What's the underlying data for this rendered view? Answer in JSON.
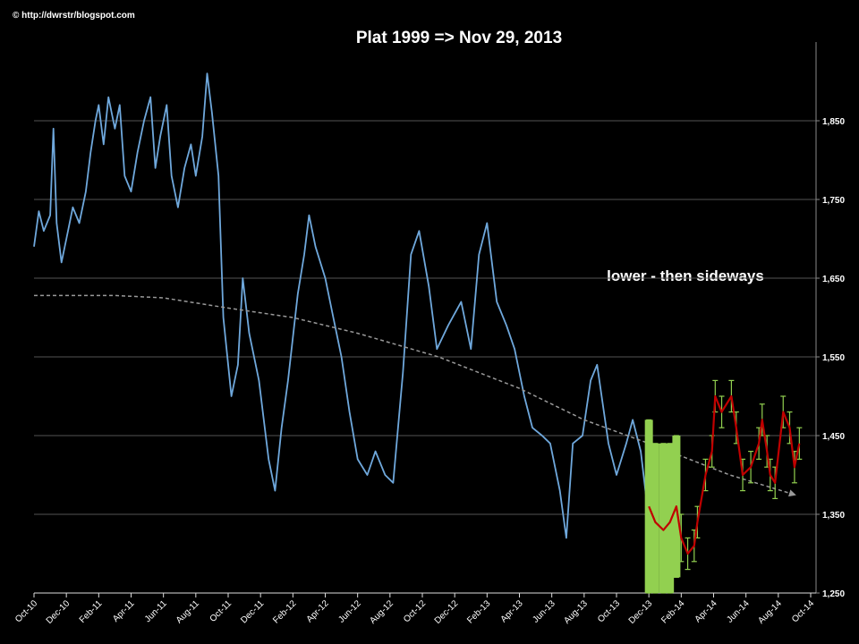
{
  "chart_data": {
    "type": "line",
    "title": "Plat 1999 => Nov 29, 2013",
    "annotation": "lower - then sideways",
    "credit": "© http://dwrstr/blogspot.com",
    "xlim": [
      0,
      48
    ],
    "xticks": [
      {
        "value": 0,
        "label": "Oct-10"
      },
      {
        "value": 2,
        "label": "Dec-10"
      },
      {
        "value": 4,
        "label": "Feb-11"
      },
      {
        "value": 6,
        "label": "Apr-11"
      },
      {
        "value": 8,
        "label": "Jun-11"
      },
      {
        "value": 10,
        "label": "Aug-11"
      },
      {
        "value": 12,
        "label": "Oct-11"
      },
      {
        "value": 14,
        "label": "Dec-11"
      },
      {
        "value": 16,
        "label": "Feb-12"
      },
      {
        "value": 18,
        "label": "Apr-12"
      },
      {
        "value": 20,
        "label": "Jun-12"
      },
      {
        "value": 22,
        "label": "Aug-12"
      },
      {
        "value": 24,
        "label": "Oct-12"
      },
      {
        "value": 26,
        "label": "Dec-12"
      },
      {
        "value": 28,
        "label": "Feb-13"
      },
      {
        "value": 30,
        "label": "Apr-13"
      },
      {
        "value": 32,
        "label": "Jun-13"
      },
      {
        "value": 34,
        "label": "Aug-13"
      },
      {
        "value": 36,
        "label": "Oct-13"
      },
      {
        "value": 38,
        "label": "Dec-13"
      },
      {
        "value": 40,
        "label": "Feb-14"
      },
      {
        "value": 42,
        "label": "Apr-14"
      },
      {
        "value": 44,
        "label": "Jun-14"
      },
      {
        "value": 46,
        "label": "Aug-14"
      },
      {
        "value": 48,
        "label": "Oct-14"
      }
    ],
    "ylim": [
      1250,
      1950
    ],
    "yticks": [
      {
        "value": 1250,
        "label": "1,250"
      },
      {
        "value": 1350,
        "label": "1,350"
      },
      {
        "value": 1450,
        "label": "1,450"
      },
      {
        "value": 1550,
        "label": "1,550"
      },
      {
        "value": 1650,
        "label": "1,650"
      },
      {
        "value": 1750,
        "label": "1,750"
      },
      {
        "value": 1850,
        "label": "1,850"
      }
    ],
    "grid": true,
    "series": [
      {
        "color": "#6fa8dc",
        "style": "solid",
        "x": [
          0,
          0.3,
          0.6,
          1,
          1.2,
          1.4,
          1.7,
          2,
          2.4,
          2.8,
          3.2,
          3.5,
          3.8,
          4,
          4.3,
          4.6,
          5,
          5.3,
          5.6,
          6,
          6.4,
          6.8,
          7.2,
          7.5,
          7.8,
          8.2,
          8.5,
          8.9,
          9.3,
          9.7,
          10,
          10.4,
          10.7,
          11,
          11.4,
          11.7,
          12.2,
          12.6,
          12.9,
          13.3,
          13.9,
          14.5,
          14.9,
          15.3,
          15.7,
          16.3,
          16.7,
          17,
          17.4,
          18,
          18.5,
          19,
          19.5,
          20,
          20.6,
          21.1,
          21.7,
          22.2,
          22.8,
          23.3,
          23.8,
          24.4,
          24.9,
          25.6,
          26.4,
          27,
          27.5,
          28,
          28.6,
          29.2,
          29.7,
          30.3,
          30.8,
          31.4,
          31.9,
          32.5,
          32.9,
          33.3,
          33.9,
          34.4,
          34.8,
          35.5,
          36,
          36.6,
          37,
          37.5,
          37.9
        ],
        "values": [
          1690,
          1735,
          1710,
          1730,
          1840,
          1720,
          1670,
          1700,
          1740,
          1720,
          1760,
          1810,
          1850,
          1870,
          1820,
          1880,
          1840,
          1870,
          1780,
          1760,
          1810,
          1850,
          1880,
          1790,
          1830,
          1870,
          1780,
          1740,
          1790,
          1820,
          1780,
          1830,
          1910,
          1860,
          1780,
          1600,
          1500,
          1540,
          1650,
          1580,
          1520,
          1420,
          1380,
          1460,
          1520,
          1630,
          1680,
          1730,
          1690,
          1650,
          1600,
          1550,
          1480,
          1420,
          1400,
          1430,
          1400,
          1390,
          1530,
          1680,
          1710,
          1640,
          1560,
          1590,
          1620,
          1560,
          1680,
          1720,
          1620,
          1590,
          1560,
          1500,
          1460,
          1450,
          1440,
          1380,
          1320,
          1440,
          1450,
          1520,
          1540,
          1440,
          1400,
          1440,
          1470,
          1430,
          1360
        ]
      },
      {
        "color": "#999999",
        "style": "dashed",
        "x": [
          0,
          5,
          8,
          12,
          16,
          20,
          25,
          30,
          34,
          38,
          43,
          47
        ],
        "values": [
          1628,
          1628,
          1625,
          1612,
          1600,
          1580,
          1550,
          1510,
          1470,
          1440,
          1400,
          1375
        ]
      },
      {
        "color": "#c00000",
        "style": "solid",
        "error_color": "#92d050",
        "x": [
          38,
          38.4,
          38.9,
          39.3,
          39.7,
          40,
          40.4,
          40.8,
          41,
          41.5,
          41.9,
          42.1,
          42.5,
          43.1,
          43.4,
          43.8,
          44.3,
          44.8,
          45,
          45.3,
          45.5,
          45.8,
          46.3,
          46.7,
          47,
          47.3
        ],
        "values": [
          1360,
          1340,
          1330,
          1340,
          1360,
          1320,
          1300,
          1310,
          1340,
          1400,
          1430,
          1500,
          1480,
          1500,
          1460,
          1400,
          1410,
          1440,
          1470,
          1430,
          1400,
          1390,
          1480,
          1460,
          1410,
          1440
        ],
        "errors": [
          110,
          100,
          110,
          100,
          90,
          30,
          20,
          20,
          20,
          20,
          20,
          20,
          20,
          20,
          20,
          20,
          20,
          20,
          20,
          20,
          20,
          20,
          20,
          20,
          20,
          20
        ]
      }
    ]
  }
}
